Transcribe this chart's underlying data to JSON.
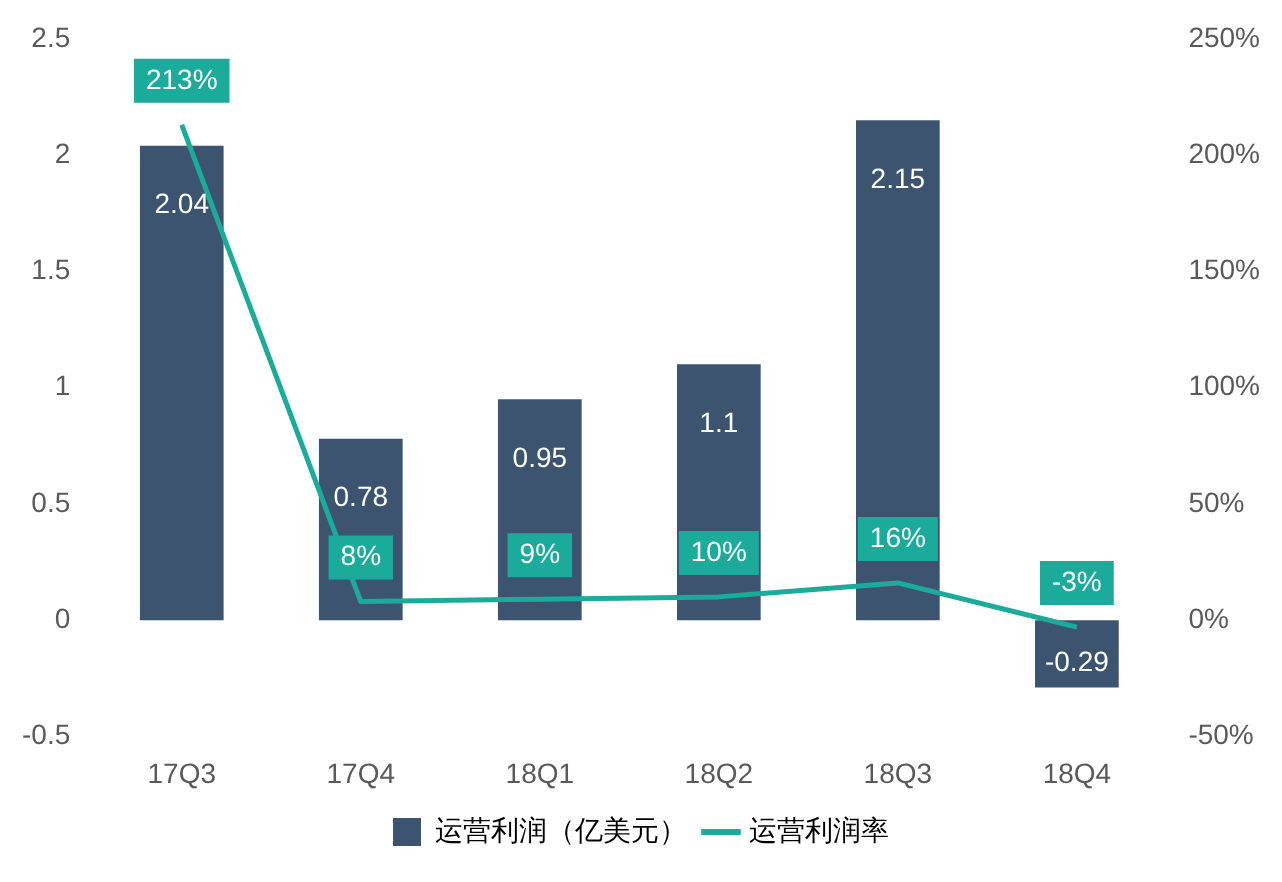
{
  "chart_data": {
    "type": "bar",
    "categories": [
      "17Q3",
      "17Q4",
      "18Q1",
      "18Q2",
      "18Q3",
      "18Q4"
    ],
    "series": [
      {
        "name": "运营利润（亿美元）",
        "color": "#3d5470",
        "values": [
          2.04,
          0.78,
          0.95,
          1.1,
          2.15,
          -0.29
        ],
        "value_labels": [
          "2.04",
          "0.78",
          "0.95",
          "1.1",
          "2.15",
          "-0.29"
        ]
      },
      {
        "name": "运营利润率",
        "type": "line",
        "axis": "y2",
        "color": "#1aab9b",
        "values": [
          213,
          8,
          9,
          10,
          16,
          -3
        ],
        "value_labels": [
          "213%",
          "8%",
          "9%",
          "10%",
          "16%",
          "-3%"
        ]
      }
    ],
    "ylim": [
      -0.5,
      2.5
    ],
    "yticks": [
      -0.5,
      0,
      0.5,
      1,
      1.5,
      2,
      2.5
    ],
    "y2lim": [
      -50,
      250
    ],
    "y2ticks": [
      {
        "value": -50,
        "label": "-50%"
      },
      {
        "value": 0,
        "label": "0%"
      },
      {
        "value": 50,
        "label": "50%"
      },
      {
        "value": 100,
        "label": "100%"
      },
      {
        "value": 150,
        "label": "150%"
      },
      {
        "value": 200,
        "label": "200%"
      },
      {
        "value": 250,
        "label": "250%"
      }
    ],
    "grid": false,
    "legend": "bottom",
    "marker": "none",
    "line_style": "solid"
  }
}
